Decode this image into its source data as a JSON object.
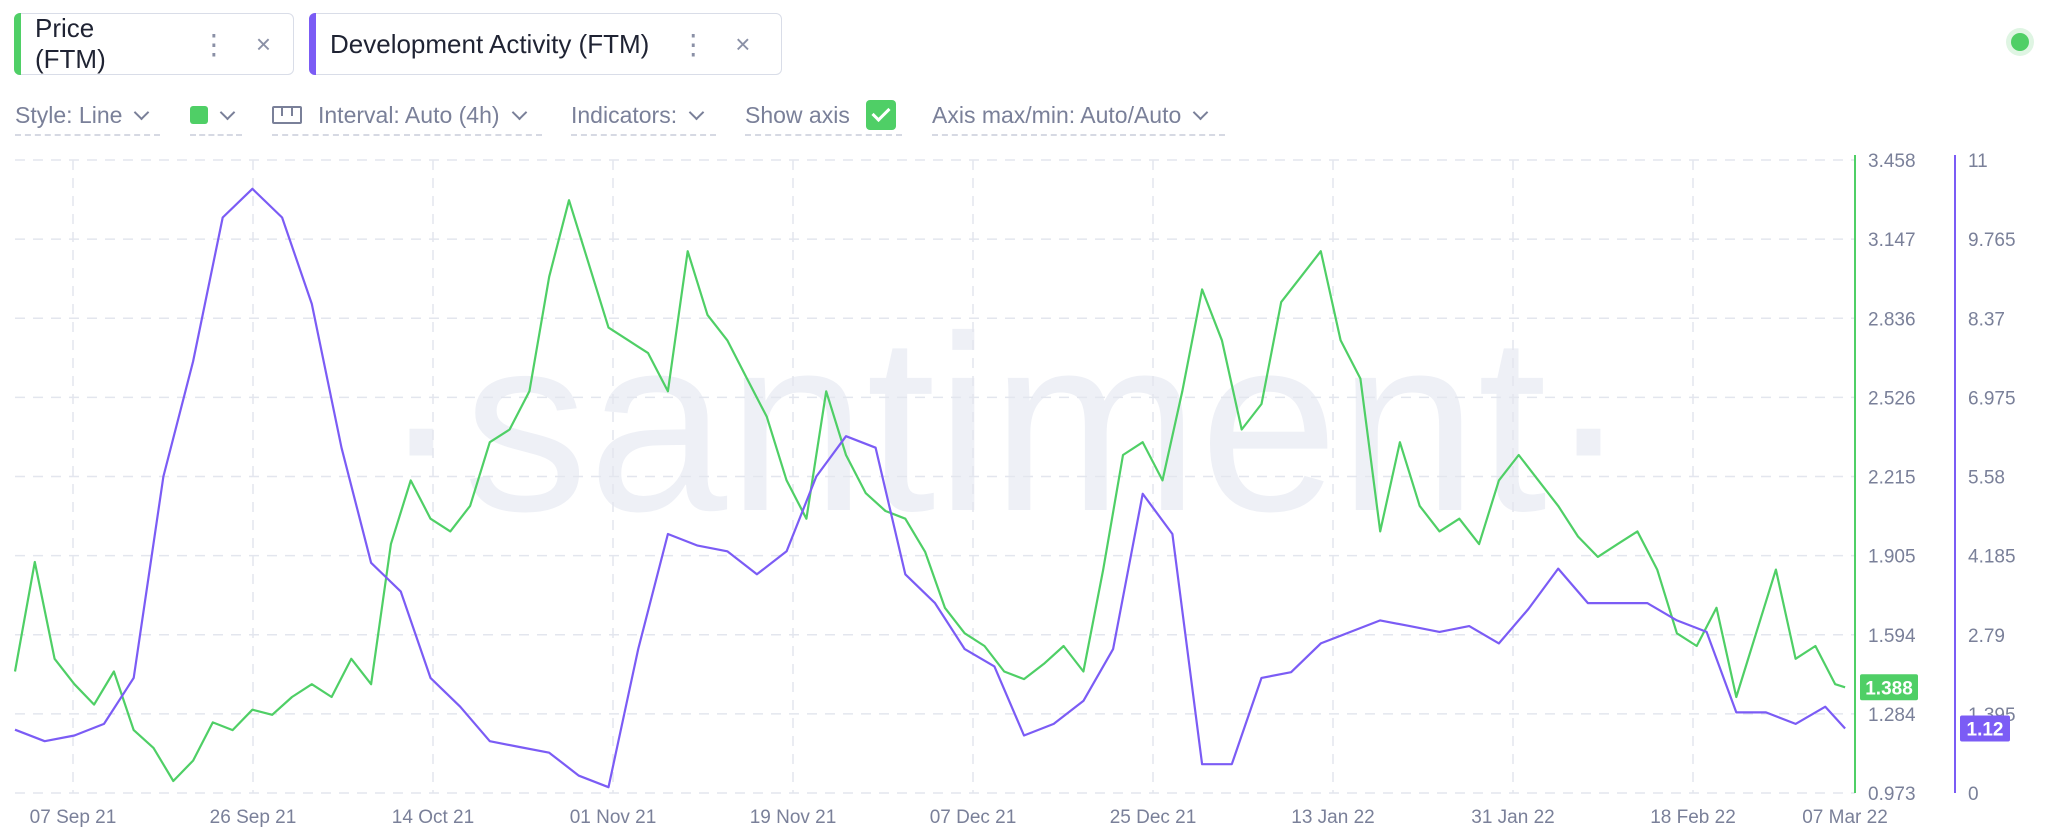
{
  "tabs": [
    {
      "label": "Price (FTM)",
      "color": "#4fcf66",
      "menu_glyph": "⋮",
      "close_glyph": "×"
    },
    {
      "label": "Development Activity (FTM)",
      "color": "#7b5cf5",
      "menu_glyph": "⋮",
      "close_glyph": "×"
    }
  ],
  "toolbar": {
    "style_label": "Style: Line",
    "color_swatch": "#4fcf66",
    "interval_label": "Interval: Auto (4h)",
    "indicators_label": "Indicators:",
    "show_axis_label": "Show axis",
    "show_axis_checked": true,
    "axis_label": "Axis max/min: Auto/Auto"
  },
  "status": {
    "color": "#4fcf66"
  },
  "watermark": "·santiment·",
  "chart_data": {
    "type": "line",
    "grid": true,
    "x_ticks": [
      "07 Sep 21",
      "26 Sep 21",
      "14 Oct 21",
      "01 Nov 21",
      "19 Nov 21",
      "07 Dec 21",
      "25 Dec 21",
      "13 Jan 22",
      "31 Jan 22",
      "18 Feb 22",
      "07 Mar 22"
    ],
    "x_range": [
      "2021-09-02",
      "2022-03-07"
    ],
    "price_axis": {
      "ticks": [
        "3.458",
        "3.147",
        "2.836",
        "2.526",
        "2.215",
        "1.905",
        "1.594",
        "1.284",
        "0.973"
      ],
      "ylim": [
        0.973,
        3.458
      ]
    },
    "dev_axis": {
      "ticks": [
        "11",
        "9.765",
        "8.37",
        "6.975",
        "5.58",
        "4.185",
        "2.79",
        "1.395",
        "0"
      ],
      "ylim": [
        0,
        11
      ]
    },
    "series": [
      {
        "name": "Price (FTM)",
        "axis": "price",
        "color": "#4fcf66",
        "last_value_label": "1.388",
        "x": [
          "2021-09-02",
          "2021-09-04",
          "2021-09-06",
          "2021-09-08",
          "2021-09-10",
          "2021-09-12",
          "2021-09-14",
          "2021-09-16",
          "2021-09-18",
          "2021-09-20",
          "2021-09-22",
          "2021-09-24",
          "2021-09-26",
          "2021-09-28",
          "2021-09-30",
          "2021-10-02",
          "2021-10-04",
          "2021-10-06",
          "2021-10-08",
          "2021-10-10",
          "2021-10-12",
          "2021-10-14",
          "2021-10-16",
          "2021-10-18",
          "2021-10-20",
          "2021-10-22",
          "2021-10-24",
          "2021-10-26",
          "2021-10-28",
          "2021-10-30",
          "2021-11-01",
          "2021-11-03",
          "2021-11-05",
          "2021-11-07",
          "2021-11-09",
          "2021-11-11",
          "2021-11-13",
          "2021-11-15",
          "2021-11-17",
          "2021-11-19",
          "2021-11-21",
          "2021-11-23",
          "2021-11-25",
          "2021-11-27",
          "2021-11-29",
          "2021-12-01",
          "2021-12-03",
          "2021-12-05",
          "2021-12-07",
          "2021-12-09",
          "2021-12-11",
          "2021-12-13",
          "2021-12-15",
          "2021-12-17",
          "2021-12-19",
          "2021-12-21",
          "2021-12-23",
          "2021-12-25",
          "2021-12-27",
          "2021-12-29",
          "2021-12-31",
          "2022-01-02",
          "2022-01-04",
          "2022-01-06",
          "2022-01-08",
          "2022-01-10",
          "2022-01-12",
          "2022-01-14",
          "2022-01-16",
          "2022-01-18",
          "2022-01-20",
          "2022-01-22",
          "2022-01-24",
          "2022-01-26",
          "2022-01-28",
          "2022-01-30",
          "2022-02-01",
          "2022-02-03",
          "2022-02-05",
          "2022-02-07",
          "2022-02-09",
          "2022-02-11",
          "2022-02-13",
          "2022-02-15",
          "2022-02-17",
          "2022-02-19",
          "2022-02-21",
          "2022-02-23",
          "2022-02-25",
          "2022-02-27",
          "2022-03-01",
          "2022-03-03",
          "2022-03-05",
          "2022-03-06"
        ],
        "values": [
          1.45,
          1.88,
          1.5,
          1.4,
          1.32,
          1.45,
          1.22,
          1.15,
          1.02,
          1.1,
          1.25,
          1.22,
          1.3,
          1.28,
          1.35,
          1.4,
          1.35,
          1.5,
          1.4,
          1.95,
          2.2,
          2.05,
          2.0,
          2.1,
          2.35,
          2.4,
          2.55,
          3.0,
          3.3,
          3.05,
          2.8,
          2.75,
          2.7,
          2.55,
          3.1,
          2.85,
          2.75,
          2.6,
          2.45,
          2.2,
          2.05,
          2.55,
          2.3,
          2.15,
          2.08,
          2.05,
          1.92,
          1.7,
          1.6,
          1.55,
          1.45,
          1.42,
          1.48,
          1.55,
          1.45,
          1.85,
          2.3,
          2.35,
          2.2,
          2.55,
          2.95,
          2.75,
          2.4,
          2.5,
          2.9,
          3.0,
          3.1,
          2.75,
          2.6,
          2.0,
          2.35,
          2.1,
          2.0,
          2.05,
          1.95,
          2.2,
          2.3,
          2.2,
          2.1,
          1.98,
          1.9,
          1.95,
          2.0,
          1.85,
          1.6,
          1.55,
          1.7,
          1.35,
          1.6,
          1.85,
          1.5,
          1.55,
          1.4,
          1.388
        ]
      },
      {
        "name": "Development Activity (FTM)",
        "axis": "dev",
        "color": "#7b5cf5",
        "last_value_label": "1.12",
        "x": [
          "2021-09-02",
          "2021-09-05",
          "2021-09-08",
          "2021-09-11",
          "2021-09-14",
          "2021-09-17",
          "2021-09-20",
          "2021-09-23",
          "2021-09-26",
          "2021-09-29",
          "2021-10-02",
          "2021-10-05",
          "2021-10-08",
          "2021-10-11",
          "2021-10-14",
          "2021-10-17",
          "2021-10-20",
          "2021-10-23",
          "2021-10-26",
          "2021-10-29",
          "2021-11-01",
          "2021-11-04",
          "2021-11-07",
          "2021-11-10",
          "2021-11-13",
          "2021-11-16",
          "2021-11-19",
          "2021-11-22",
          "2021-11-25",
          "2021-11-28",
          "2021-12-01",
          "2021-12-04",
          "2021-12-07",
          "2021-12-10",
          "2021-12-13",
          "2021-12-16",
          "2021-12-19",
          "2021-12-22",
          "2021-12-25",
          "2021-12-28",
          "2021-12-31",
          "2022-01-03",
          "2022-01-06",
          "2022-01-09",
          "2022-01-12",
          "2022-01-15",
          "2022-01-18",
          "2022-01-21",
          "2022-01-24",
          "2022-01-27",
          "2022-01-30",
          "2022-02-02",
          "2022-02-05",
          "2022-02-08",
          "2022-02-11",
          "2022-02-14",
          "2022-02-17",
          "2022-02-20",
          "2022-02-23",
          "2022-02-26",
          "2022-03-01",
          "2022-03-04",
          "2022-03-06"
        ],
        "values": [
          1.1,
          0.9,
          1.0,
          1.2,
          2.0,
          5.5,
          7.5,
          10.0,
          10.5,
          10.0,
          8.5,
          6.0,
          4.0,
          3.5,
          2.0,
          1.5,
          0.9,
          0.8,
          0.7,
          0.3,
          0.1,
          2.5,
          4.5,
          4.3,
          4.2,
          3.8,
          4.2,
          5.5,
          6.2,
          6.0,
          3.8,
          3.3,
          2.5,
          2.2,
          1.0,
          1.2,
          1.6,
          2.5,
          5.2,
          4.5,
          0.5,
          0.5,
          2.0,
          2.1,
          2.6,
          2.8,
          3.0,
          2.9,
          2.8,
          2.9,
          2.6,
          3.2,
          3.9,
          3.3,
          3.3,
          3.3,
          3.0,
          2.8,
          1.4,
          1.4,
          1.2,
          1.5,
          1.12
        ]
      }
    ]
  }
}
